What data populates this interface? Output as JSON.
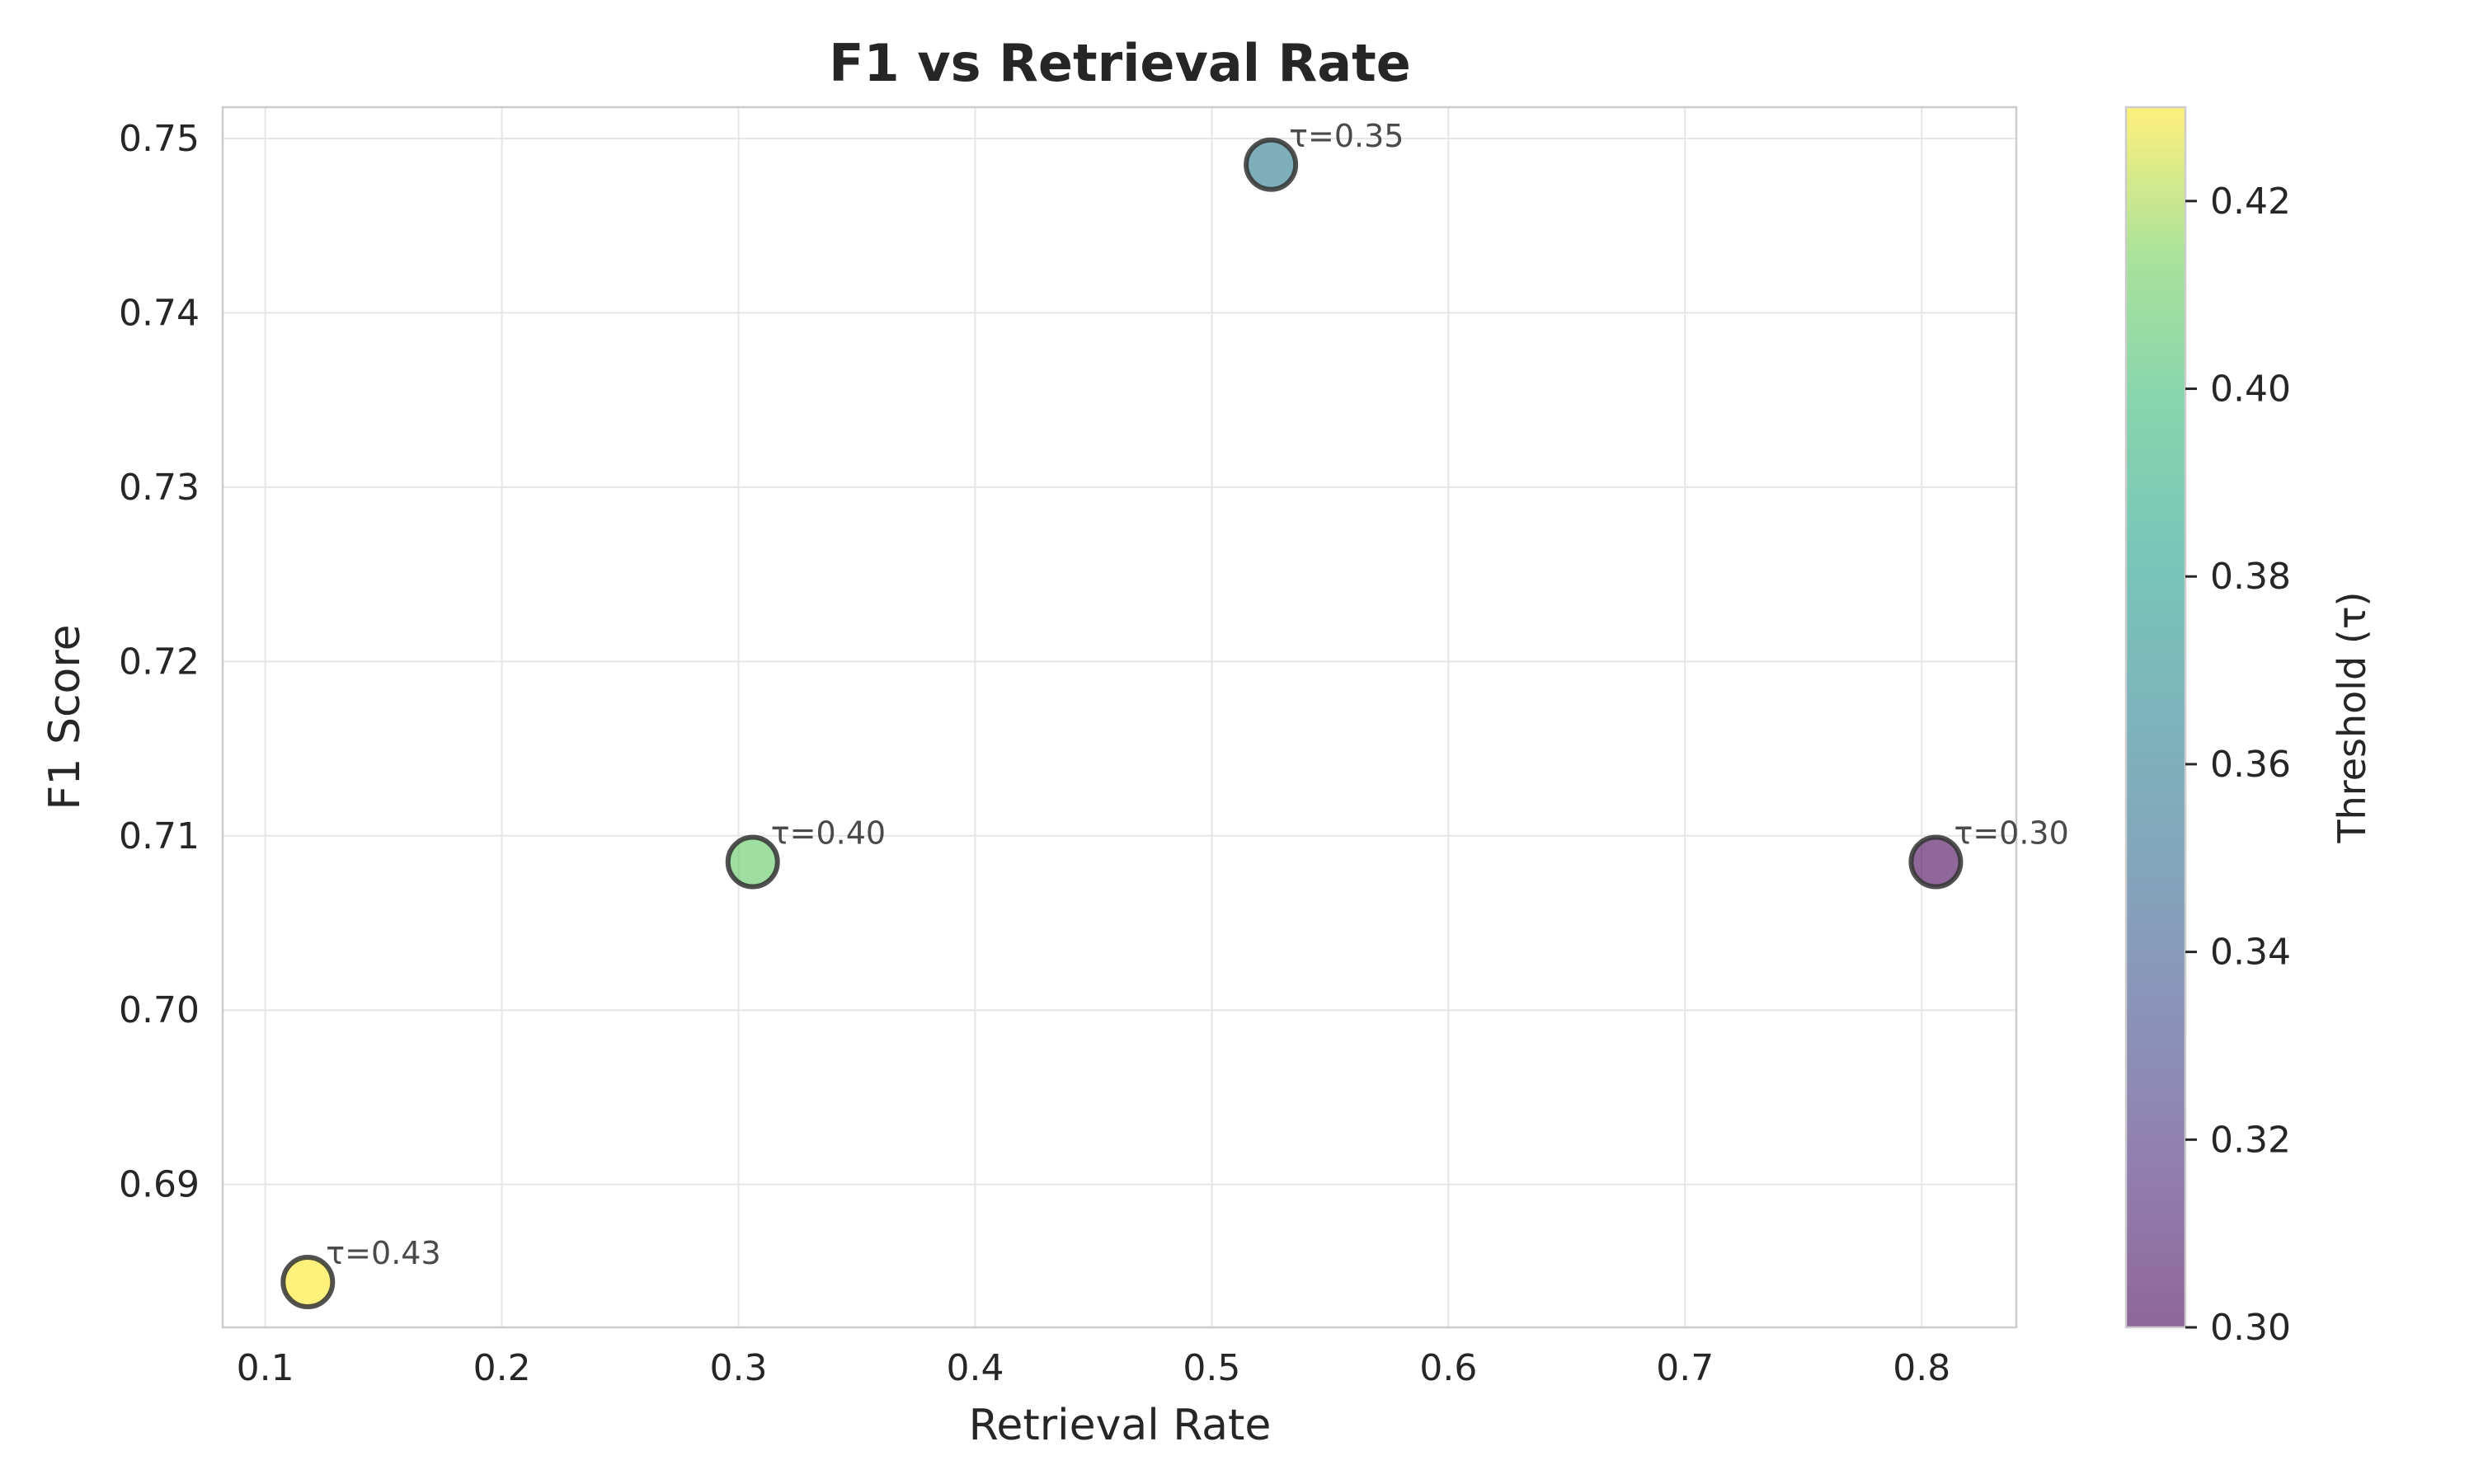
{
  "chart_data": {
    "type": "scatter",
    "title": "F1 vs Retrieval Rate",
    "xlabel": "Retrieval Rate",
    "ylabel": "F1 Score",
    "xlim": [
      0.082,
      0.84
    ],
    "ylim": [
      0.6818,
      0.7518
    ],
    "xticks": [
      0.1,
      0.2,
      0.3,
      0.4,
      0.5,
      0.6,
      0.7,
      0.8
    ],
    "xtick_labels": [
      "0.1",
      "0.2",
      "0.3",
      "0.4",
      "0.5",
      "0.6",
      "0.7",
      "0.8"
    ],
    "yticks": [
      0.69,
      0.7,
      0.71,
      0.72,
      0.73,
      0.74,
      0.75
    ],
    "ytick_labels": [
      "0.69",
      "0.70",
      "0.71",
      "0.72",
      "0.73",
      "0.74",
      "0.75"
    ],
    "grid": true,
    "points": [
      {
        "x": 0.118,
        "y": 0.6844,
        "threshold": 0.43,
        "label": "τ=0.43",
        "color": "#fde725"
      },
      {
        "x": 0.306,
        "y": 0.7085,
        "threshold": 0.4,
        "label": "τ=0.40",
        "color": "#5ec962"
      },
      {
        "x": 0.525,
        "y": 0.7485,
        "threshold": 0.35,
        "label": "τ=0.35",
        "color": "#2a788e"
      },
      {
        "x": 0.806,
        "y": 0.7085,
        "threshold": 0.3,
        "label": "τ=0.30",
        "color": "#440154"
      }
    ],
    "colorbar": {
      "label": "Threshold (τ)",
      "range": [
        0.3,
        0.43
      ],
      "ticks": [
        0.3,
        0.32,
        0.34,
        0.36,
        0.38,
        0.4,
        0.42
      ],
      "tick_labels": [
        "0.30",
        "0.32",
        "0.34",
        "0.36",
        "0.38",
        "0.40",
        "0.42"
      ],
      "colormap": "viridis",
      "alpha": 0.6
    }
  }
}
